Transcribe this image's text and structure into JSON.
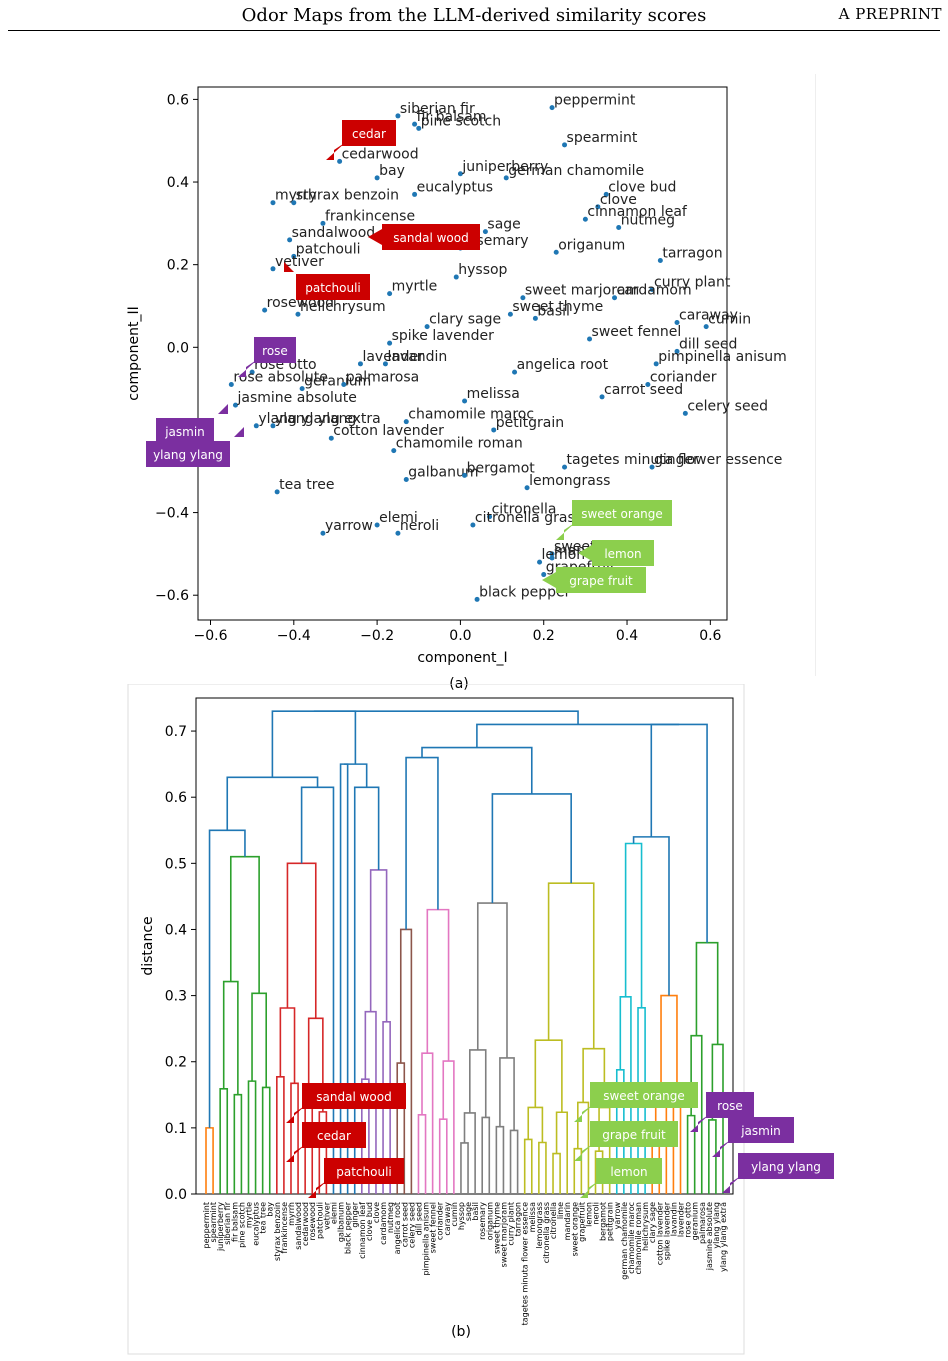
{
  "header": {
    "title": "Odor Maps from the LLM-derived similarity scores",
    "right": "A PREPRINT"
  },
  "captions": {
    "a": "(a)",
    "b": "(b)"
  },
  "colors": {
    "point": "#1f77b4",
    "red_callout": "#cc0000",
    "purple_callout": "#7b2fa0",
    "green_callout": "#8ccf4d"
  },
  "chart_data": [
    {
      "type": "scatter",
      "xlabel": "component_I",
      "ylabel": "component_II",
      "xlim": [
        -0.63,
        0.64
      ],
      "ylim": [
        -0.66,
        0.63
      ],
      "xticks": [
        "−0.6",
        "−0.4",
        "−0.2",
        "0.0",
        "0.2",
        "0.4",
        "0.6"
      ],
      "xtick_values": [
        -0.6,
        -0.4,
        -0.2,
        0.0,
        0.2,
        0.4,
        0.6
      ],
      "yticks": [
        "0.6",
        "0.4",
        "0.2",
        "0.0",
        "−0.2",
        "−0.4",
        "−0.6"
      ],
      "ytick_values": [
        0.6,
        0.4,
        0.2,
        0.0,
        -0.2,
        -0.4,
        -0.6
      ],
      "points": [
        {
          "label": "fir balsam",
          "x": -0.11,
          "y": 0.54
        },
        {
          "label": "siberian fir",
          "x": -0.15,
          "y": 0.56
        },
        {
          "label": "pine scotch",
          "x": -0.1,
          "y": 0.53
        },
        {
          "label": "peppermint",
          "x": 0.22,
          "y": 0.58
        },
        {
          "label": "spearmint",
          "x": 0.25,
          "y": 0.49
        },
        {
          "label": "cedarwood",
          "x": -0.29,
          "y": 0.45
        },
        {
          "label": "bay",
          "x": -0.2,
          "y": 0.41
        },
        {
          "label": "juniperberry",
          "x": 0.0,
          "y": 0.42
        },
        {
          "label": "german chamomile",
          "x": 0.11,
          "y": 0.41
        },
        {
          "label": "clove bud",
          "x": 0.35,
          "y": 0.37
        },
        {
          "label": "myrrh",
          "x": -0.45,
          "y": 0.35
        },
        {
          "label": "styrax benzoin",
          "x": -0.4,
          "y": 0.35
        },
        {
          "label": "eucalyptus",
          "x": -0.11,
          "y": 0.37
        },
        {
          "label": "clove",
          "x": 0.33,
          "y": 0.34
        },
        {
          "label": "cinnamon leaf",
          "x": 0.3,
          "y": 0.31
        },
        {
          "label": "nutmeg",
          "x": 0.38,
          "y": 0.29
        },
        {
          "label": "frankincense",
          "x": -0.33,
          "y": 0.3
        },
        {
          "label": "sandalwood",
          "x": -0.41,
          "y": 0.26
        },
        {
          "label": "sage",
          "x": 0.06,
          "y": 0.28
        },
        {
          "label": "rosemary",
          "x": 0.0,
          "y": 0.24
        },
        {
          "label": "origanum",
          "x": 0.23,
          "y": 0.23
        },
        {
          "label": "tarragon",
          "x": 0.48,
          "y": 0.21
        },
        {
          "label": "patchouli",
          "x": -0.4,
          "y": 0.22
        },
        {
          "label": "vetiver",
          "x": -0.45,
          "y": 0.19
        },
        {
          "label": "hyssop",
          "x": -0.01,
          "y": 0.17
        },
        {
          "label": "myrtle",
          "x": -0.17,
          "y": 0.13
        },
        {
          "label": "curry plant",
          "x": 0.46,
          "y": 0.14
        },
        {
          "label": "sweet marjoram",
          "x": 0.15,
          "y": 0.12
        },
        {
          "label": "cardamom",
          "x": 0.37,
          "y": 0.12
        },
        {
          "label": "rosewood",
          "x": -0.47,
          "y": 0.09
        },
        {
          "label": "helichrysum",
          "x": -0.39,
          "y": 0.08
        },
        {
          "label": "sweet thyme",
          "x": 0.12,
          "y": 0.08
        },
        {
          "label": "basil",
          "x": 0.18,
          "y": 0.07
        },
        {
          "label": "clary sage",
          "x": -0.08,
          "y": 0.05
        },
        {
          "label": "caraway",
          "x": 0.52,
          "y": 0.06
        },
        {
          "label": "cumin",
          "x": 0.59,
          "y": 0.05
        },
        {
          "label": "spike lavender",
          "x": -0.17,
          "y": 0.01
        },
        {
          "label": "sweet fennel",
          "x": 0.31,
          "y": 0.02
        },
        {
          "label": "dill seed",
          "x": 0.52,
          "y": -0.01
        },
        {
          "label": "lavender",
          "x": -0.24,
          "y": -0.04
        },
        {
          "label": "lavandin",
          "x": -0.18,
          "y": -0.04
        },
        {
          "label": "pimpinella anisum",
          "x": 0.47,
          "y": -0.04
        },
        {
          "label": "angelica root",
          "x": 0.13,
          "y": -0.06
        },
        {
          "label": "rose otto",
          "x": -0.5,
          "y": -0.06
        },
        {
          "label": "rose absolute",
          "x": -0.55,
          "y": -0.09
        },
        {
          "label": "geranium",
          "x": -0.38,
          "y": -0.1
        },
        {
          "label": "palmarosa",
          "x": -0.28,
          "y": -0.09
        },
        {
          "label": "coriander",
          "x": 0.45,
          "y": -0.09
        },
        {
          "label": "melissa",
          "x": 0.01,
          "y": -0.13
        },
        {
          "label": "carrot seed",
          "x": 0.34,
          "y": -0.12
        },
        {
          "label": "jasmine absolute",
          "x": -0.54,
          "y": -0.14
        },
        {
          "label": "celery seed",
          "x": 0.54,
          "y": -0.16
        },
        {
          "label": "ylang ylang extra",
          "x": -0.49,
          "y": -0.19
        },
        {
          "label": "ylang ylang",
          "x": -0.45,
          "y": -0.19
        },
        {
          "label": "chamomile maroc",
          "x": -0.13,
          "y": -0.18
        },
        {
          "label": "petitgrain",
          "x": 0.08,
          "y": -0.2
        },
        {
          "label": "cotton lavender",
          "x": -0.31,
          "y": -0.22
        },
        {
          "label": "chamomile roman",
          "x": -0.16,
          "y": -0.25
        },
        {
          "label": "tagetes minuta flower essence",
          "x": 0.25,
          "y": -0.29
        },
        {
          "label": "ginger",
          "x": 0.46,
          "y": -0.29
        },
        {
          "label": "galbanum",
          "x": -0.13,
          "y": -0.32
        },
        {
          "label": "bergamot",
          "x": 0.01,
          "y": -0.31
        },
        {
          "label": "lemongrass",
          "x": 0.16,
          "y": -0.34
        },
        {
          "label": "tea tree",
          "x": -0.44,
          "y": -0.35
        },
        {
          "label": "citronella",
          "x": 0.07,
          "y": -0.41
        },
        {
          "label": "citronella grass",
          "x": 0.03,
          "y": -0.43
        },
        {
          "label": "yarrow",
          "x": -0.33,
          "y": -0.45
        },
        {
          "label": "elemi",
          "x": -0.2,
          "y": -0.43
        },
        {
          "label": "neroli",
          "x": -0.15,
          "y": -0.45
        },
        {
          "label": "sweet orange",
          "x": 0.22,
          "y": -0.5
        },
        {
          "label": "lemon",
          "x": 0.19,
          "y": -0.52
        },
        {
          "label": "mandarin",
          "x": 0.22,
          "y": -0.51
        },
        {
          "label": "grapefruit",
          "x": 0.2,
          "y": -0.55
        },
        {
          "label": "black pepper",
          "x": 0.04,
          "y": -0.61
        }
      ]
    },
    {
      "type": "dendrogram",
      "ylabel": "distance",
      "ylim": [
        0.0,
        0.75
      ],
      "yticks": [
        "0.7",
        "0.6",
        "0.5",
        "0.4",
        "0.3",
        "0.2",
        "0.1",
        "0.0"
      ],
      "ytick_values": [
        0.7,
        0.6,
        0.5,
        0.4,
        0.3,
        0.2,
        0.1,
        0.0
      ],
      "leaves": [
        "peppermint",
        "spearmint",
        "juniperberry",
        "siberian fir",
        "fir balsam",
        "pine scotch",
        "myrtle",
        "eucalyptus",
        "tea tree",
        "bay",
        "styrax benzoin",
        "frankincense",
        "myrrh",
        "sandalwood",
        "cedarwood",
        "rosewood",
        "patchouli",
        "vetiver",
        "elemi",
        "galbanum",
        "black pepper",
        "ginger",
        "cinnamon leaf",
        "clove bud",
        "clove",
        "cardamom",
        "nutmeg",
        "angelica root",
        "carrot seed",
        "celery seed",
        "dill seed",
        "pimpinella anisum",
        "sweet fennel",
        "coriander",
        "caraway",
        "cumin",
        "hyssop",
        "sage",
        "basil",
        "rosemary",
        "origanum",
        "sweet thyme",
        "sweet marjoram",
        "curry plant",
        "tarragon",
        "tagetes minuta flower essence",
        "melissa",
        "lemongrass",
        "citronella grass",
        "citronella",
        "lime",
        "mandarin",
        "sweet orange",
        "grapefruit",
        "lemon",
        "neroli",
        "bergamot",
        "petitgrain",
        "yarrow",
        "german chamomile",
        "chamomile maroc",
        "chamomile roman",
        "helichrysum",
        "clary sage",
        "cotton lavender",
        "spike lavender",
        "lavandin",
        "lavender",
        "rose otto",
        "geranium",
        "palmarosa",
        "jasmine absolute",
        "ylang ylang",
        "ylang ylang extra"
      ]
    }
  ],
  "callouts_a": [
    {
      "text": "cedar",
      "color": "red"
    },
    {
      "text": "sandal wood",
      "color": "red"
    },
    {
      "text": "patchouli",
      "color": "red"
    },
    {
      "text": "rose",
      "color": "purple"
    },
    {
      "text": "jasmin",
      "color": "purple"
    },
    {
      "text": "ylang ylang",
      "color": "purple"
    },
    {
      "text": "sweet orange",
      "color": "green"
    },
    {
      "text": "lemon",
      "color": "green"
    },
    {
      "text": "grape fruit",
      "color": "green"
    }
  ],
  "callouts_b": [
    {
      "text": "sandal wood",
      "color": "red"
    },
    {
      "text": "cedar",
      "color": "red"
    },
    {
      "text": "patchouli",
      "color": "red"
    },
    {
      "text": "sweet orange",
      "color": "green"
    },
    {
      "text": "grape fruit",
      "color": "green"
    },
    {
      "text": "lemon",
      "color": "green"
    },
    {
      "text": "rose",
      "color": "purple"
    },
    {
      "text": "jasmin",
      "color": "purple"
    },
    {
      "text": "ylang ylang",
      "color": "purple"
    }
  ]
}
